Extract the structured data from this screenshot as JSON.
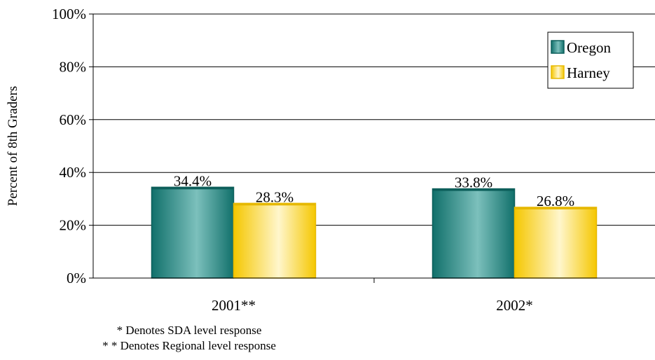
{
  "chart_data": {
    "type": "bar",
    "categories": [
      "2001**",
      "2002*"
    ],
    "series": [
      {
        "name": "Oregon",
        "values": [
          34.4,
          33.8
        ],
        "labels": [
          "34.4%",
          "33.8%"
        ],
        "color": "#2a8a86"
      },
      {
        "name": "Harney",
        "values": [
          28.3,
          26.8
        ],
        "labels": [
          "28.3%",
          "26.8%"
        ],
        "color": "#f2c400"
      }
    ],
    "ylabel": "Percent of 8th Graders",
    "ylim": [
      0,
      100
    ],
    "yticks": [
      0,
      20,
      40,
      60,
      80,
      100
    ],
    "ytick_labels": [
      "0%",
      "20%",
      "40%",
      "60%",
      "80%",
      "100%"
    ],
    "grid": true,
    "legend_position": "top-right"
  },
  "footnotes": {
    "sda": "* Denotes SDA level response",
    "regional": "* * Denotes Regional level response"
  }
}
